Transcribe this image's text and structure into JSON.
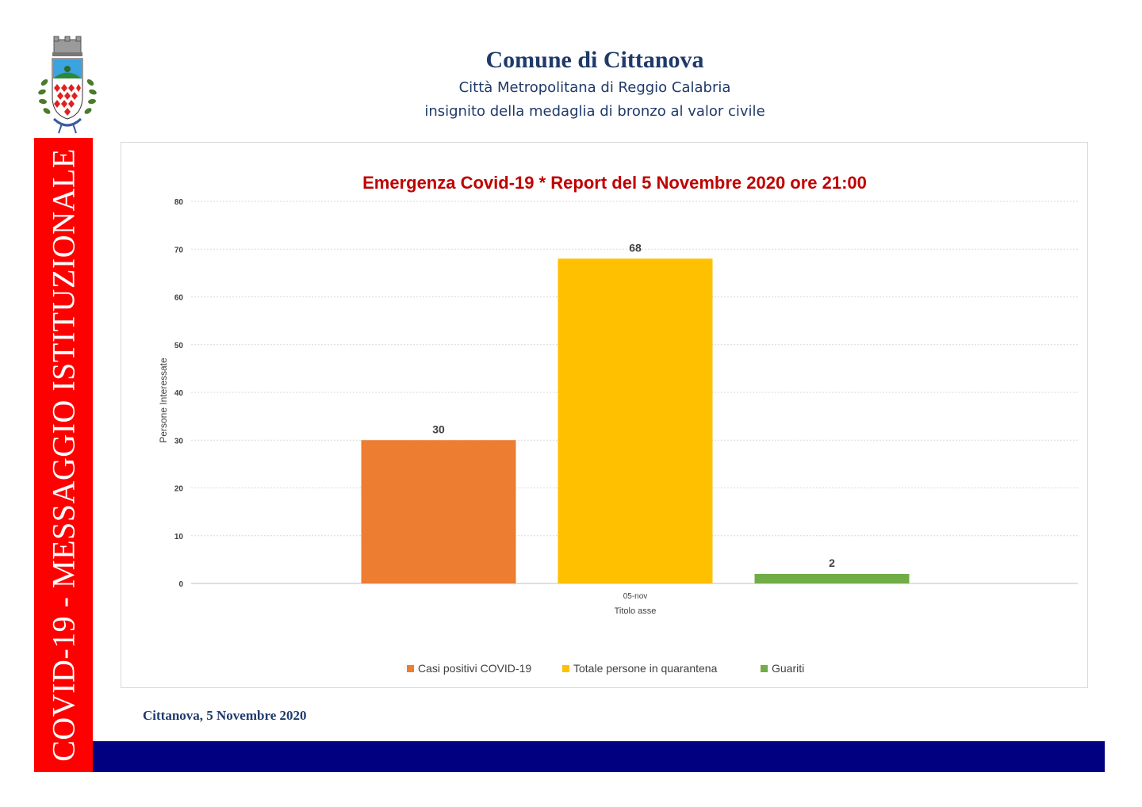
{
  "header": {
    "title": "Comune di Cittanova",
    "subtitle1": "Città Metropolitana di Reggio Calabria",
    "subtitle2": "insignito della medaglia di bronzo al valor civile"
  },
  "side_banner": "COVID-19 - MESSAGGIO ISTITUZIONALE",
  "footer": {
    "date": "Cittanova, 5  Novembre 2020"
  },
  "colors": {
    "red_band": "#ff0000",
    "blue_band": "#010080",
    "title_red": "#c00000",
    "orange": "#ed7d31",
    "yellow": "#ffc000",
    "green": "#70ad47"
  },
  "chart_data": {
    "type": "bar",
    "title": "Emergenza Covid-19 * Report del 5 Novembre 2020 ore 21:00",
    "categories": [
      "05-nov"
    ],
    "xlabel": "Titolo asse",
    "ylabel": "Persone Interessate",
    "ylim": [
      0,
      80
    ],
    "yticks": [
      0,
      10,
      20,
      30,
      40,
      50,
      60,
      70,
      80
    ],
    "grid": true,
    "legend_position": "bottom",
    "series": [
      {
        "name": "Casi positivi COVID-19",
        "values": [
          30
        ],
        "color": "#ed7d31"
      },
      {
        "name": "Totale persone in quarantena",
        "values": [
          68
        ],
        "color": "#ffc000"
      },
      {
        "name": "Guariti",
        "values": [
          2
        ],
        "color": "#70ad47"
      }
    ]
  }
}
